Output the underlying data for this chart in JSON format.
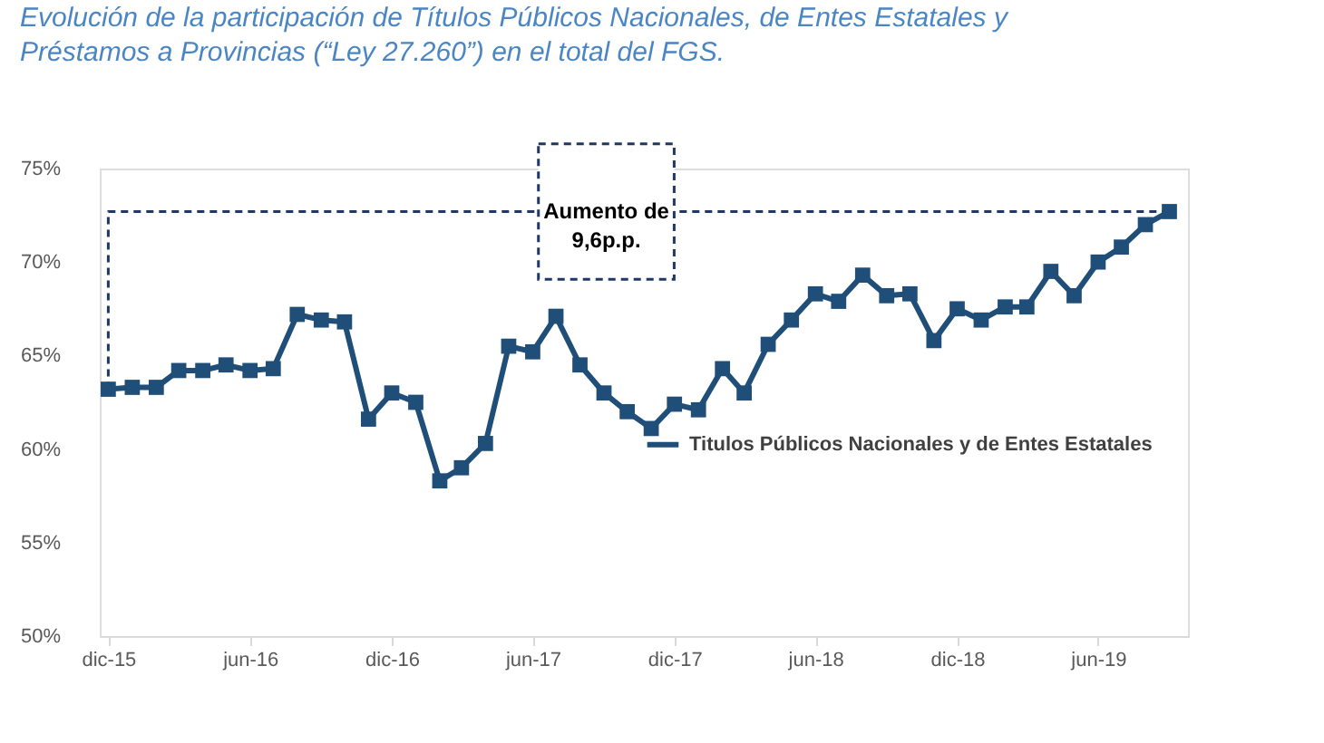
{
  "chart_data": {
    "type": "line",
    "title": [
      "Evolución de la participación de Títulos Públicos Nacionales, de Entes Estatales y",
      "Préstamos a Provincias (“Ley 27.260”) en el total del FGS."
    ],
    "x": [
      "2015-12",
      "2016-01",
      "2016-02",
      "2016-03",
      "2016-04",
      "2016-05",
      "2016-06",
      "2016-07",
      "2016-08",
      "2016-09",
      "2016-10",
      "2016-11",
      "2016-12",
      "2017-01",
      "2017-02",
      "2017-03",
      "2017-04",
      "2017-05",
      "2017-06",
      "2017-07",
      "2017-08",
      "2017-09",
      "2017-10",
      "2017-11",
      "2017-12",
      "2018-01",
      "2018-02",
      "2018-03",
      "2018-04",
      "2018-05",
      "2018-06",
      "2018-07",
      "2018-08",
      "2018-09",
      "2018-10",
      "2018-11",
      "2018-12",
      "2019-01",
      "2019-02",
      "2019-03",
      "2019-04",
      "2019-05",
      "2019-06",
      "2019-07",
      "2019-08",
      "2019-09"
    ],
    "series": [
      {
        "name": "Titulos Públicos Nacionales  y de Entes Estatales",
        "color": "#1f4e79",
        "values": [
          63.2,
          63.3,
          63.3,
          64.2,
          64.2,
          64.5,
          64.2,
          64.3,
          67.2,
          66.9,
          66.8,
          61.6,
          63.0,
          62.5,
          58.3,
          59.0,
          60.3,
          65.5,
          65.2,
          67.1,
          64.5,
          63.0,
          62.0,
          61.1,
          62.4,
          62.1,
          64.3,
          63.0,
          65.6,
          66.9,
          68.3,
          67.9,
          69.3,
          68.2,
          68.3,
          65.8,
          67.5,
          66.9,
          67.6,
          67.6,
          69.5,
          68.2,
          70.0,
          70.8,
          72.0,
          72.7
        ]
      },
      {
        "type": "line",
        "color": "#1f3864",
        "x": [
          "2015-12",
          "2015-12",
          "2019-09"
        ],
        "values": [
          63.2,
          72.7,
          72.7
        ],
        "line_style": "dashed",
        "marker": "none"
      }
    ],
    "ylim": [
      50,
      75
    ],
    "yticks": [
      {
        "value": 50,
        "label": "50%"
      },
      {
        "value": 55,
        "label": "55%"
      },
      {
        "value": 60,
        "label": "60%"
      },
      {
        "value": 65,
        "label": "65%"
      },
      {
        "value": 70,
        "label": "70%"
      },
      {
        "value": 75,
        "label": "75%"
      }
    ],
    "xlim": [
      "2015-11-20",
      "2019-09-25"
    ],
    "xticks": [
      {
        "value": "2015-12",
        "label": "dic-15"
      },
      {
        "value": "2016-06",
        "label": "jun-16"
      },
      {
        "value": "2016-12",
        "label": "dic-16"
      },
      {
        "value": "2017-06",
        "label": "jun-17"
      },
      {
        "value": "2017-12",
        "label": "dic-17"
      },
      {
        "value": "2018-06",
        "label": "jun-18"
      },
      {
        "value": "2018-12",
        "label": "dic-18"
      },
      {
        "value": "2019-06",
        "label": "jun-19"
      }
    ],
    "annotations": [
      "Aumento de 9,6p.p."
    ],
    "marker": "square",
    "line_style": "solid",
    "grid": false,
    "legend": "right"
  }
}
